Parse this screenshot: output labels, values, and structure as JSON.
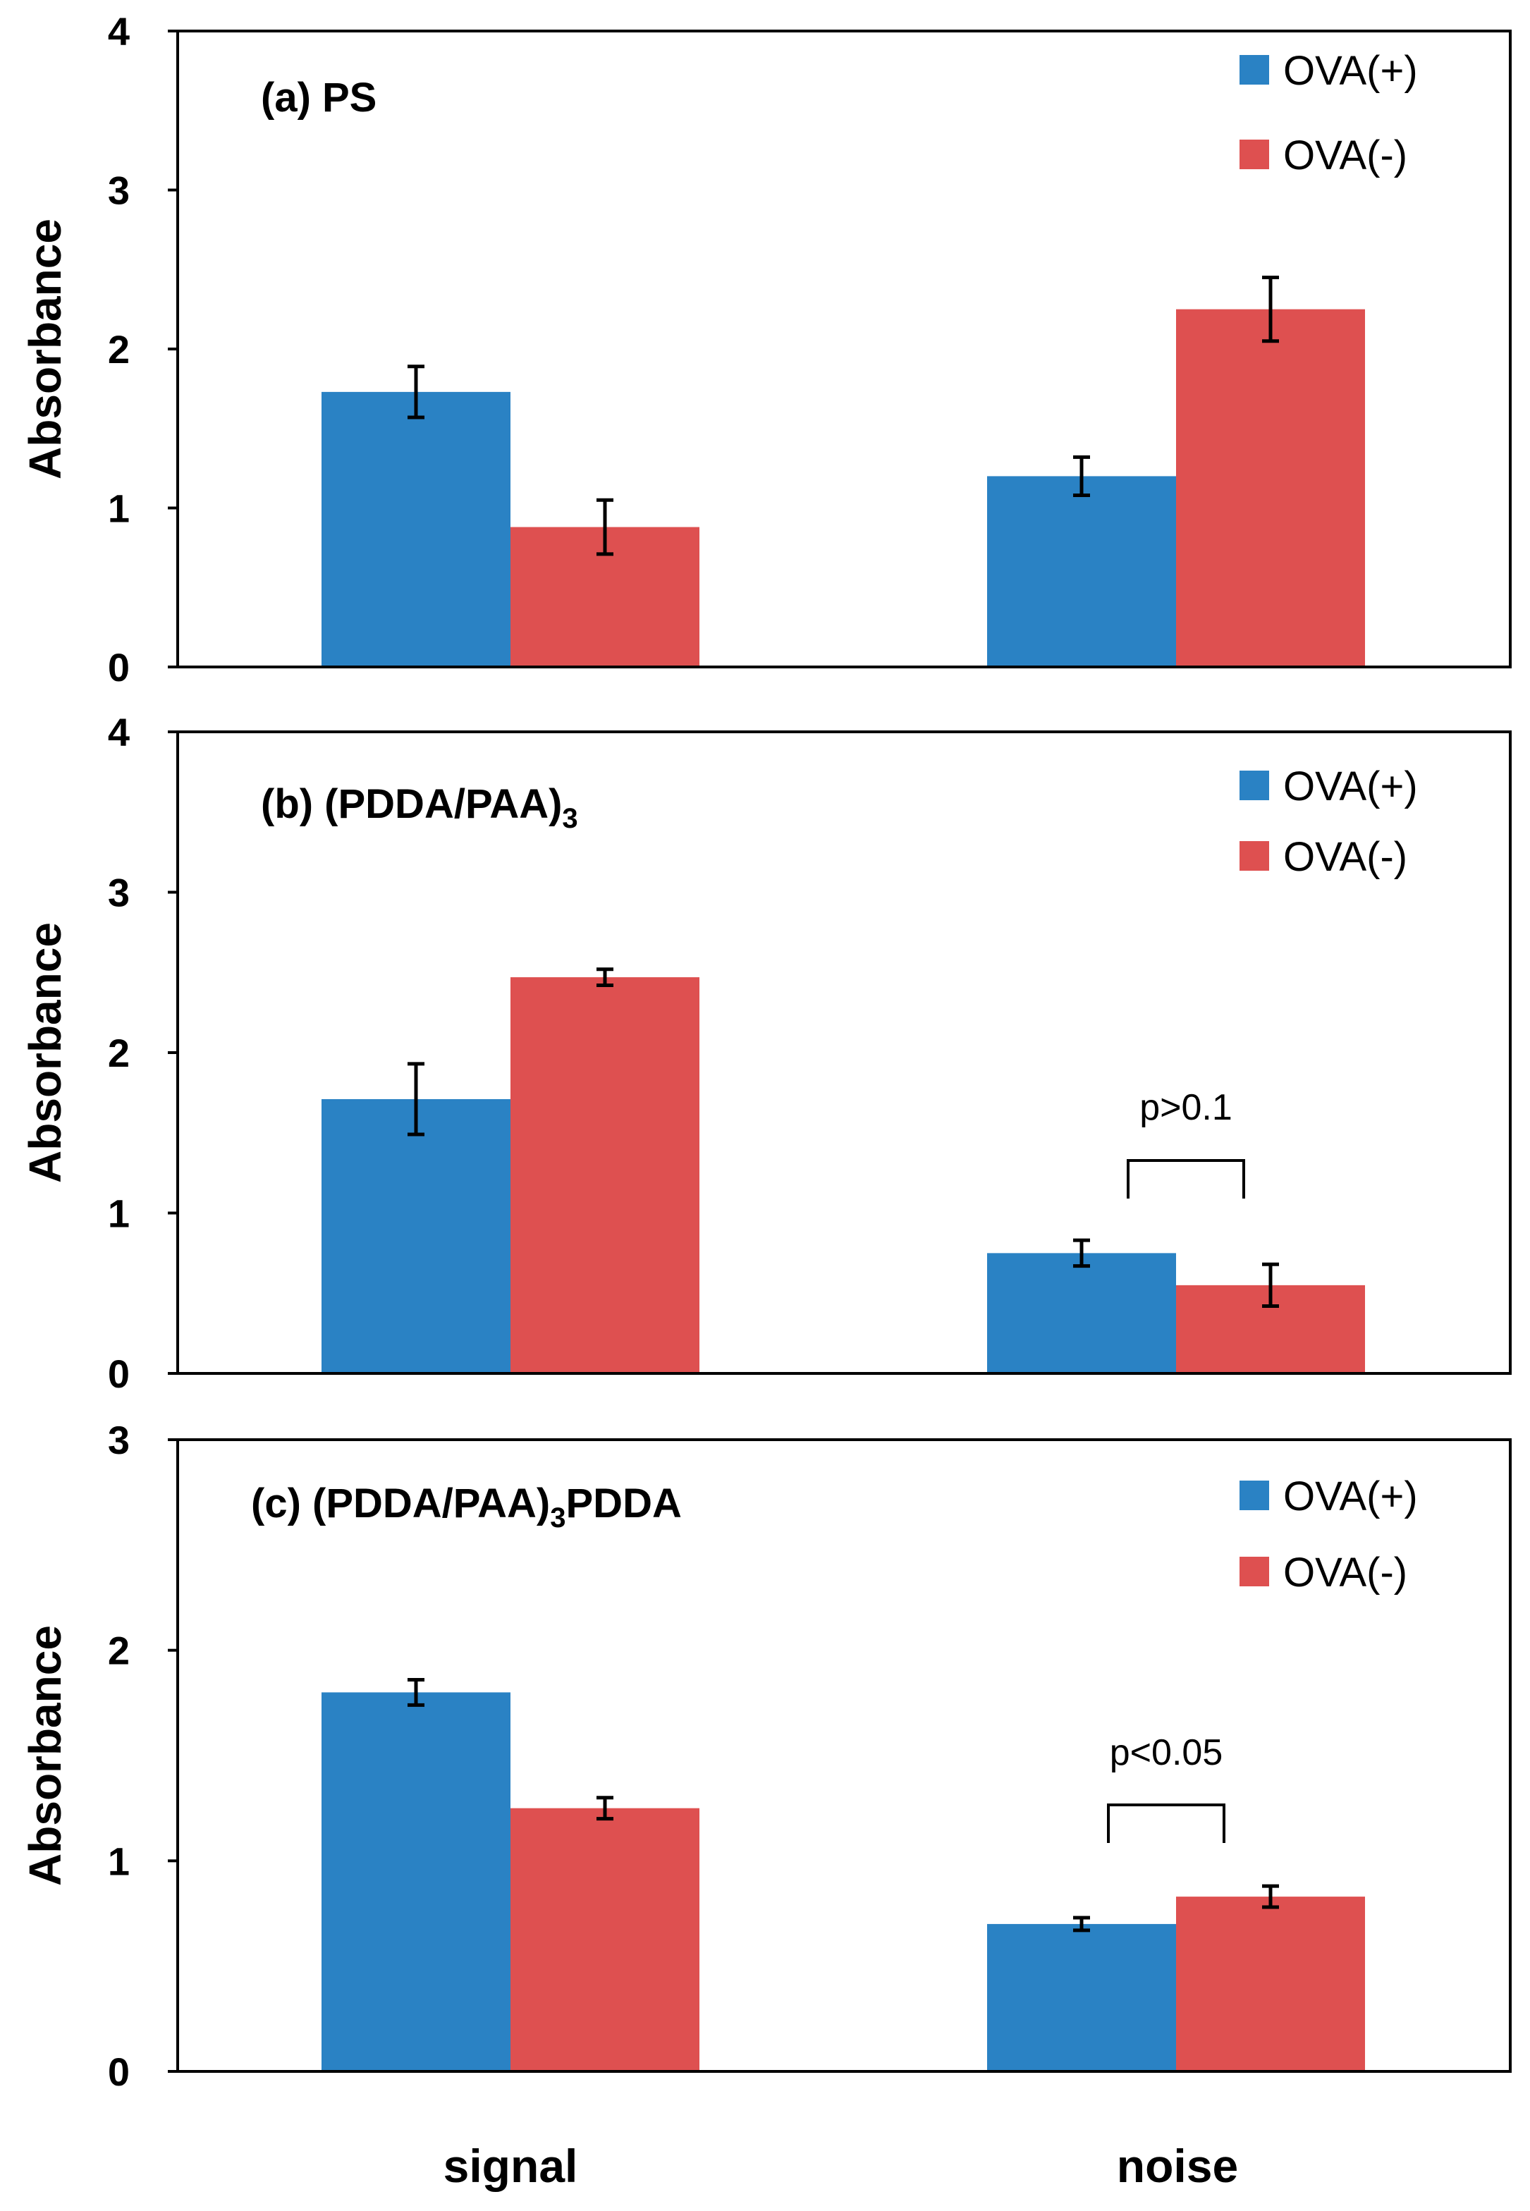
{
  "chart_data": [
    {
      "type": "bar",
      "title": "(a) PS",
      "categories": [
        "signal",
        "noise"
      ],
      "ylabel": "Absorbance",
      "ylim": [
        0,
        4
      ],
      "yticks": [
        "0",
        "1",
        "2",
        "3",
        "4"
      ],
      "series": [
        {
          "name": "OVA(+)",
          "color": "#2A82C4",
          "values": [
            1.73,
            1.2
          ],
          "errors": [
            0.16,
            0.12
          ]
        },
        {
          "name": "OVA(-)",
          "color": "#DE5050",
          "values": [
            0.88,
            2.25
          ],
          "errors": [
            0.17,
            0.2
          ]
        }
      ],
      "annotation": null,
      "legend": "top-right"
    },
    {
      "type": "bar",
      "title": "(b)  (PDDA/PAA)",
      "title_sub": "3",
      "categories": [
        "signal",
        "noise"
      ],
      "ylabel": "Absorbance",
      "ylim": [
        0,
        4
      ],
      "yticks": [
        "0",
        "1",
        "2",
        "3",
        "4"
      ],
      "series": [
        {
          "name": "OVA(+)",
          "color": "#2A82C4",
          "values": [
            1.71,
            0.75
          ],
          "errors": [
            0.22,
            0.08
          ]
        },
        {
          "name": "OVA(-)",
          "color": "#DE5050",
          "values": [
            2.47,
            0.55
          ],
          "errors": [
            0.05,
            0.13
          ]
        }
      ],
      "annotation": "p>0.1",
      "legend": "top-right"
    },
    {
      "type": "bar",
      "title": "(c)  (PDDA/PAA)",
      "title_sub": "3",
      "title_tail": "PDDA",
      "categories": [
        "signal",
        "noise"
      ],
      "ylabel": "Absorbance",
      "ylim": [
        0,
        3
      ],
      "yticks": [
        "0",
        "1",
        "2",
        "3"
      ],
      "series": [
        {
          "name": "OVA(+)",
          "color": "#2A82C4",
          "values": [
            1.8,
            0.7
          ],
          "errors": [
            0.06,
            0.03
          ]
        },
        {
          "name": "OVA(-)",
          "color": "#DE5050",
          "values": [
            1.25,
            0.83
          ],
          "errors": [
            0.05,
            0.05
          ]
        }
      ],
      "annotation": "p<0.05",
      "legend": "top-right"
    }
  ],
  "xlabels": [
    "signal",
    "noise"
  ]
}
